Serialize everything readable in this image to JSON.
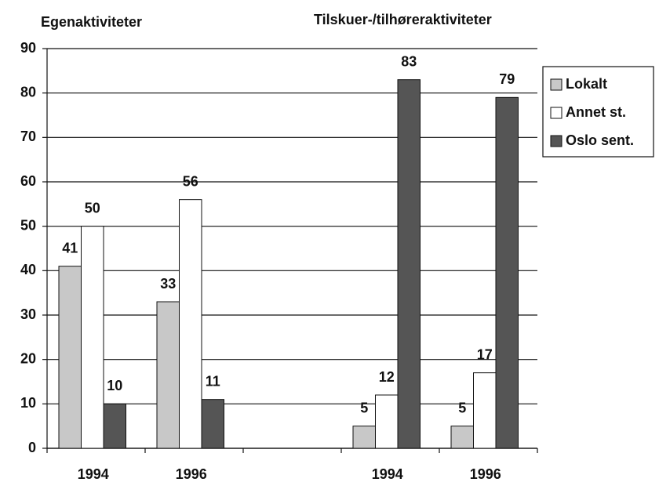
{
  "chart_data": {
    "type": "bar",
    "group_labels": [
      "Egenaktiviteter",
      "Tilskuer-/tilhøreraktiviteter"
    ],
    "categories": [
      "1994",
      "1996",
      null,
      "1994",
      "1996"
    ],
    "series": [
      {
        "name": "Lokalt",
        "color": "#c8c8c8",
        "values": [
          41,
          33,
          null,
          5,
          5
        ]
      },
      {
        "name": "Annet st.",
        "color": "#ffffff",
        "values": [
          50,
          56,
          null,
          12,
          17
        ]
      },
      {
        "name": "Oslo sent.",
        "color": "#555555",
        "values": [
          10,
          11,
          null,
          83,
          79
        ]
      }
    ],
    "ylim": [
      0,
      90
    ],
    "yticks": [
      0,
      10,
      20,
      30,
      40,
      50,
      60,
      70,
      80,
      90
    ],
    "grid": true,
    "legend": "right",
    "data_labels": true
  }
}
